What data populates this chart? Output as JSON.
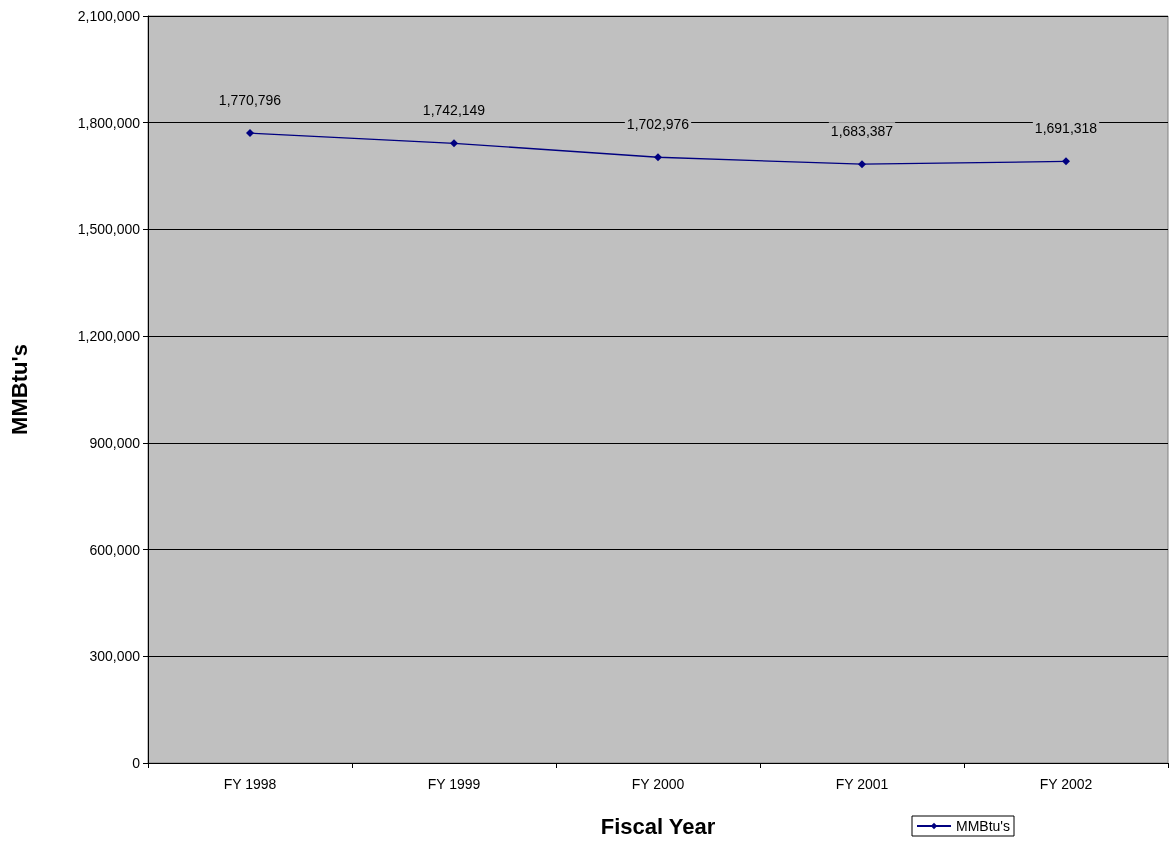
{
  "chart_data": {
    "type": "line",
    "xlabel": "Fiscal Year",
    "ylabel": "MMBtu's",
    "categories": [
      "FY 1998",
      "FY 1999",
      "FY 2000",
      "FY 2001",
      "FY 2002"
    ],
    "series": [
      {
        "name": "MMBtu's",
        "color": "#000080",
        "values": [
          1770796,
          1742149,
          1702976,
          1683387,
          1691318
        ],
        "value_labels": [
          "1,770,796",
          "1,742,149",
          "1,702,976",
          "1,683,387",
          "1,691,318"
        ]
      }
    ],
    "ylim": [
      0,
      2100000
    ],
    "yticks": [
      0,
      {
        "value": 300000,
        "label": "300,000"
      },
      {
        "value": 600000,
        "label": "600,000"
      },
      {
        "value": 900000,
        "label": "900,000"
      },
      {
        "value": 1200000,
        "label": "1,200,000"
      },
      {
        "value": 1500000,
        "label": "1,500,000"
      },
      {
        "value": 1800000,
        "label": "1,800,000"
      },
      {
        "value": 2100000,
        "label": "2,100,000"
      }
    ],
    "grid": "y",
    "legend": "bottom right",
    "marker": "diamond",
    "line_style": "solid"
  }
}
